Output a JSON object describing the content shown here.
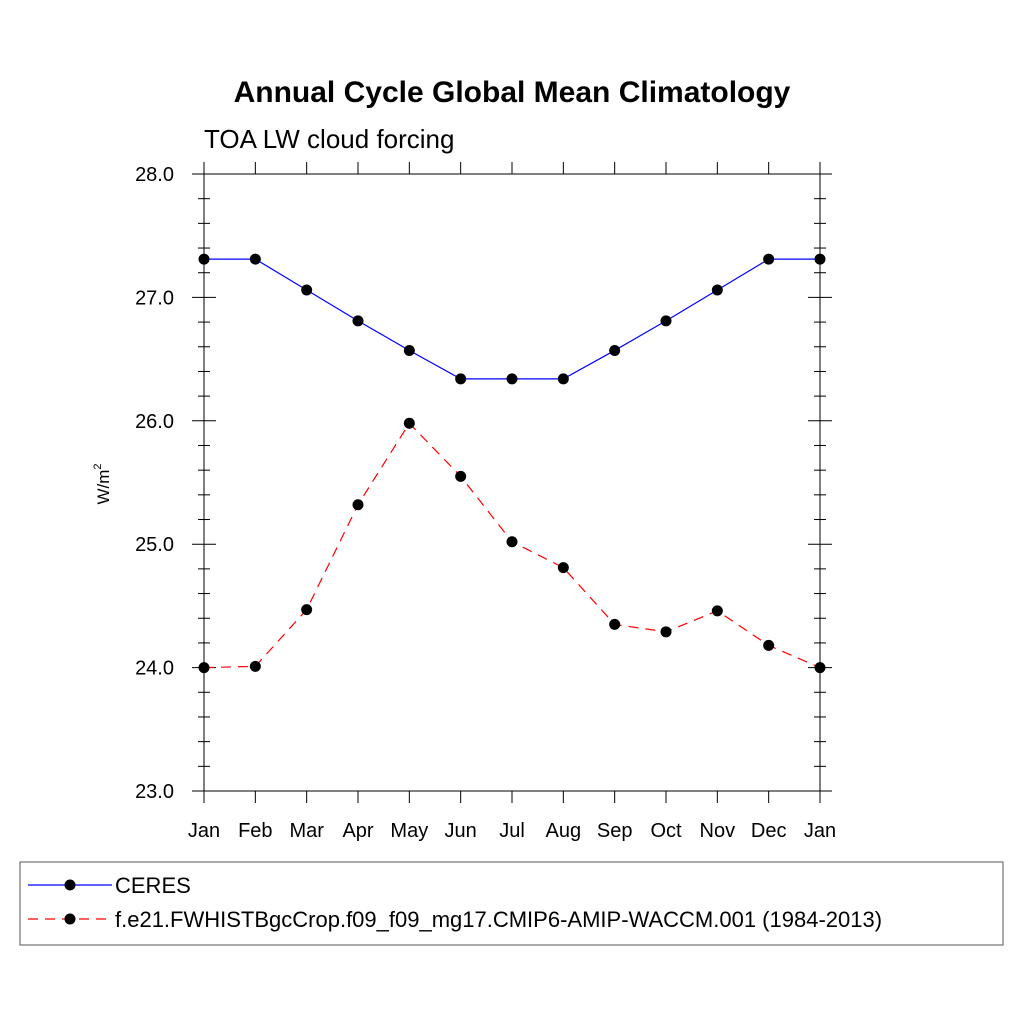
{
  "chart_data": {
    "type": "line",
    "title": "Annual Cycle Global Mean Climatology",
    "subtitle": "TOA LW cloud forcing",
    "xlabel": "",
    "ylabel": "W/m",
    "ylabel_sup": "2",
    "categories": [
      "Jan",
      "Feb",
      "Mar",
      "Apr",
      "May",
      "Jun",
      "Jul",
      "Aug",
      "Sep",
      "Oct",
      "Nov",
      "Dec",
      "Jan"
    ],
    "ylim": [
      23.0,
      28.0
    ],
    "yticks": [
      "23.0",
      "24.0",
      "25.0",
      "26.0",
      "27.0",
      "28.0"
    ],
    "grid": false,
    "legend_position": "bottom",
    "series": [
      {
        "name": "CERES",
        "color": "#0000ff",
        "dash": "solid",
        "values": [
          27.31,
          27.31,
          27.06,
          26.81,
          26.57,
          26.34,
          26.34,
          26.34,
          26.57,
          26.81,
          27.06,
          27.31,
          27.31
        ]
      },
      {
        "name": "f.e21.FWHISTBgcCrop.f09_f09_mg17.CMIP6-AMIP-WACCM.001 (1984-2013)",
        "color": "#ff0000",
        "dash": "dashed",
        "values": [
          24.0,
          24.01,
          24.47,
          25.32,
          25.98,
          25.55,
          25.02,
          24.81,
          24.35,
          24.29,
          24.46,
          24.18,
          24.0
        ]
      }
    ]
  }
}
